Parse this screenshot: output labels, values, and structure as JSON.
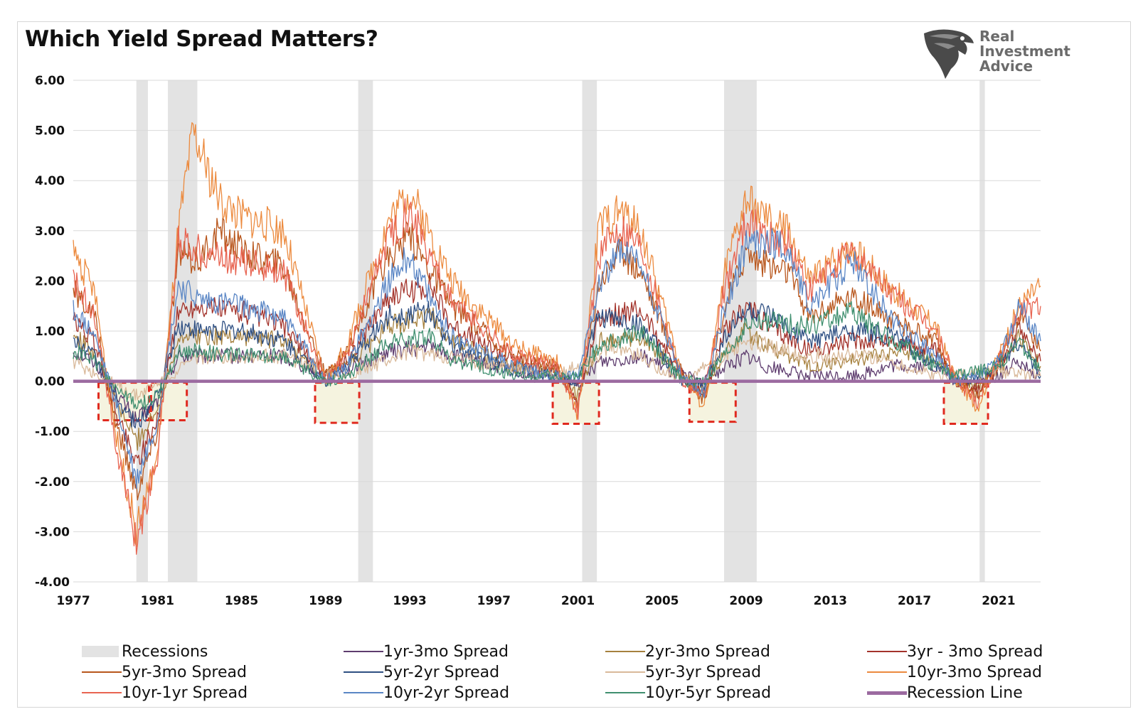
{
  "title": "Which Yield Spread Matters?",
  "logo": {
    "lines": [
      "Real",
      "Investment",
      "Advice"
    ],
    "icon": "eagle-head-icon"
  },
  "chart_data": {
    "type": "line",
    "title": "Which Yield Spread Matters?",
    "ylim": [
      -4,
      6
    ],
    "yticks": [
      "6.00",
      "5.00",
      "4.00",
      "3.00",
      "2.00",
      "1.00",
      "0.00",
      "-1.00",
      "-2.00",
      "-3.00",
      "-4.00"
    ],
    "xlim": [
      1977,
      2023
    ],
    "xticks": [
      "1977",
      "1981",
      "1985",
      "1989",
      "1993",
      "1997",
      "2001",
      "2005",
      "2009",
      "2013",
      "2017",
      "2021"
    ],
    "grid": "horizontal",
    "legend_position": "bottom",
    "recessions": [
      [
        1980.0,
        1980.55
      ],
      [
        1981.5,
        1982.9
      ],
      [
        1990.55,
        1991.25
      ],
      [
        2001.2,
        2001.9
      ],
      [
        2007.95,
        2009.5
      ],
      [
        2020.1,
        2020.35
      ]
    ],
    "highlight_boxes": [
      [
        1978.2,
        1980.6,
        -0.75
      ],
      [
        1980.7,
        1982.4,
        -0.75
      ],
      [
        1988.5,
        1990.6,
        -0.8
      ],
      [
        1999.8,
        2002.0,
        -0.82
      ],
      [
        2006.3,
        2008.5,
        -0.78
      ],
      [
        2018.4,
        2020.5,
        -0.82
      ]
    ],
    "recession_line": 0.0,
    "series": [
      {
        "name": "1yr-3mo Spread",
        "color": "#5e3c6e",
        "x": [
          1977,
          1978,
          1979,
          1980,
          1981,
          1982,
          1983,
          1985,
          1987,
          1989,
          1990,
          1992,
          1994,
          1995,
          1998,
          2000,
          2001,
          2002,
          2004,
          2006,
          2007,
          2008,
          2009,
          2010,
          2012,
          2014,
          2016,
          2018,
          2019,
          2020,
          2021,
          2022,
          2023
        ],
        "y": [
          0.6,
          0.4,
          -0.2,
          -0.8,
          -0.4,
          0.5,
          0.5,
          0.5,
          0.5,
          0.1,
          0.2,
          0.6,
          0.7,
          0.5,
          0.2,
          0.1,
          -0.1,
          0.4,
          0.5,
          0.1,
          0.0,
          0.3,
          0.5,
          0.3,
          0.1,
          0.1,
          0.3,
          0.3,
          0.0,
          0.0,
          0.1,
          0.4,
          0.1
        ]
      },
      {
        "name": "2yr-3mo Spread",
        "color": "#a6813e",
        "x": [
          1977,
          1978,
          1979,
          1980,
          1981,
          1982,
          1983,
          1985,
          1987,
          1989,
          1990,
          1992,
          1994,
          1995,
          1998,
          2000,
          2001,
          2002,
          2004,
          2006,
          2007,
          2008,
          2009,
          2010,
          2012,
          2014,
          2016,
          2018,
          2019,
          2020,
          2021,
          2022,
          2023
        ],
        "y": [
          0.9,
          0.6,
          -0.4,
          -1.2,
          -0.6,
          0.9,
          0.9,
          0.9,
          0.8,
          0.1,
          0.3,
          1.1,
          1.3,
          0.8,
          0.3,
          0.2,
          -0.3,
          0.8,
          0.9,
          0.1,
          -0.2,
          0.6,
          1.0,
          0.7,
          0.3,
          0.4,
          0.6,
          0.5,
          0.0,
          -0.1,
          0.2,
          0.9,
          0.3
        ]
      },
      {
        "name": "3yr - 3mo Spread",
        "color": "#a3332b",
        "x": [
          1977,
          1978,
          1979,
          1980,
          1981,
          1982,
          1983,
          1985,
          1987,
          1989,
          1990,
          1992,
          1994,
          1995,
          1998,
          2000,
          2001,
          2002,
          2004,
          2006,
          2007,
          2008,
          2009,
          2010,
          2012,
          2014,
          2016,
          2018,
          2019,
          2020,
          2021,
          2022,
          2023
        ],
        "y": [
          1.2,
          0.8,
          -0.6,
          -1.6,
          -0.8,
          1.4,
          1.5,
          1.4,
          1.1,
          0.1,
          0.4,
          1.7,
          1.9,
          1.1,
          0.4,
          0.2,
          -0.4,
          1.3,
          1.4,
          0.1,
          -0.3,
          1.0,
          1.5,
          1.1,
          0.6,
          0.8,
          0.8,
          0.6,
          0.0,
          -0.2,
          0.3,
          1.1,
          0.4
        ]
      },
      {
        "name": "5yr-3mo Spread",
        "color": "#b8561c",
        "x": [
          1977,
          1978,
          1979,
          1980,
          1981,
          1982,
          1983,
          1984,
          1985,
          1987,
          1989,
          1990,
          1992,
          1993,
          1994,
          1995,
          1998,
          2000,
          2001,
          2002,
          2003,
          2004,
          2006,
          2007,
          2008,
          2009,
          2010,
          2011,
          2012,
          2014,
          2016,
          2018,
          2019,
          2020,
          2021,
          2022,
          2023
        ],
        "y": [
          1.8,
          1.3,
          -0.8,
          -2.2,
          -1.0,
          2.5,
          2.4,
          3.0,
          2.6,
          2.3,
          0.1,
          0.6,
          2.5,
          2.9,
          2.2,
          1.5,
          0.5,
          0.3,
          -0.5,
          2.0,
          2.6,
          2.2,
          0.1,
          -0.4,
          1.5,
          2.6,
          2.3,
          2.2,
          1.3,
          1.7,
          1.2,
          0.8,
          0.0,
          -0.3,
          0.4,
          1.4,
          0.6
        ]
      },
      {
        "name": "5yr-2yr Spread",
        "color": "#2e4f82",
        "x": [
          1977,
          1978,
          1979,
          1980,
          1981,
          1982,
          1983,
          1985,
          1987,
          1989,
          1990,
          1992,
          1994,
          1995,
          1998,
          2000,
          2001,
          2002,
          2004,
          2006,
          2007,
          2008,
          2009,
          2010,
          2012,
          2014,
          2016,
          2018,
          2019,
          2020,
          2021,
          2022,
          2023
        ],
        "y": [
          0.8,
          0.5,
          -0.3,
          -0.9,
          -0.3,
          1.1,
          1.0,
          1.0,
          0.8,
          0.0,
          0.3,
          1.3,
          1.4,
          0.7,
          0.2,
          0.1,
          0.0,
          1.3,
          1.1,
          0.0,
          -0.1,
          0.9,
          1.4,
          1.3,
          0.8,
          1.0,
          0.9,
          0.3,
          0.0,
          0.1,
          0.3,
          0.8,
          0.1
        ]
      },
      {
        "name": "5yr-3yr Spread",
        "color": "#d9b99a",
        "x": [
          1977,
          1980,
          1983,
          1987,
          1990,
          1993,
          1996,
          2000,
          2003,
          2006,
          2009,
          2012,
          2015,
          2018,
          2021,
          2023
        ],
        "y": [
          0.4,
          -0.3,
          0.5,
          0.5,
          0.1,
          0.6,
          0.4,
          0.1,
          0.7,
          0.0,
          0.8,
          0.5,
          0.5,
          0.1,
          0.2,
          0.1
        ]
      },
      {
        "name": "10yr-3mo Spread",
        "color": "#ec8a3e",
        "x": [
          1977,
          1978,
          1979,
          1980,
          1981,
          1982,
          1982.7,
          1984,
          1985,
          1987,
          1989,
          1990,
          1992,
          1993,
          1994,
          1995,
          1998,
          2000,
          2001,
          2002,
          2003,
          2004,
          2006,
          2007,
          2008,
          2009,
          2010,
          2011,
          2012,
          2014,
          2016,
          2018,
          2019,
          2020,
          2021,
          2022,
          2023
        ],
        "y": [
          2.6,
          1.8,
          -1.0,
          -3.0,
          -1.5,
          3.0,
          4.9,
          3.6,
          3.3,
          3.0,
          0.0,
          0.7,
          3.2,
          3.8,
          2.9,
          2.0,
          0.7,
          0.4,
          -0.7,
          3.1,
          3.4,
          3.0,
          0.1,
          -0.5,
          2.2,
          3.6,
          3.2,
          3.0,
          2.0,
          2.7,
          1.8,
          1.1,
          0.0,
          -0.5,
          0.5,
          1.5,
          1.9
        ]
      },
      {
        "name": "10yr-1yr Spread",
        "color": "#e86451",
        "x": [
          1977,
          1978,
          1979,
          1980,
          1981,
          1982,
          1983,
          1985,
          1987,
          1989,
          1990,
          1992,
          1993,
          1994,
          1995,
          1998,
          2000,
          2001,
          2002,
          2003,
          2004,
          2006,
          2007,
          2008,
          2009,
          2010,
          2011,
          2012,
          2014,
          2016,
          2018,
          2019,
          2020,
          2021,
          2022,
          2023
        ],
        "y": [
          2.0,
          1.4,
          -1.2,
          -3.2,
          -1.5,
          2.8,
          2.6,
          2.4,
          2.2,
          0.0,
          0.5,
          2.9,
          3.4,
          2.5,
          1.6,
          0.5,
          0.3,
          -0.6,
          2.5,
          3.1,
          2.7,
          0.0,
          -0.3,
          1.9,
          3.2,
          2.9,
          2.7,
          1.8,
          2.6,
          1.7,
          1.0,
          0.0,
          -0.4,
          0.4,
          1.4,
          1.5
        ]
      },
      {
        "name": "10yr-2yr Spread",
        "color": "#5a86c5",
        "x": [
          1977,
          1978,
          1979,
          1980,
          1981,
          1982,
          1983,
          1985,
          1987,
          1989,
          1990,
          1992,
          1993,
          1994,
          1995,
          1998,
          2000,
          2001,
          2002,
          2003,
          2004,
          2006,
          2007,
          2008,
          2009,
          2010,
          2011,
          2012,
          2014,
          2016,
          2018,
          2019,
          2020,
          2021,
          2022,
          2023
        ],
        "y": [
          1.4,
          0.9,
          -0.4,
          -2.0,
          -0.8,
          1.9,
          1.6,
          1.5,
          1.3,
          0.0,
          0.3,
          2.0,
          2.5,
          1.6,
          0.9,
          0.3,
          0.1,
          0.1,
          2.0,
          2.6,
          2.3,
          0.0,
          -0.2,
          1.5,
          2.7,
          2.8,
          2.6,
          1.5,
          2.4,
          1.2,
          0.5,
          0.0,
          0.1,
          0.4,
          1.5,
          0.8
        ]
      },
      {
        "name": "10yr-5yr Spread",
        "color": "#3f8f6f",
        "x": [
          1977,
          1978,
          1979,
          1980,
          1981,
          1982,
          1983,
          1985,
          1987,
          1989,
          1990,
          1992,
          1994,
          1995,
          1998,
          2000,
          2001,
          2002,
          2004,
          2006,
          2007,
          2008,
          2009,
          2010,
          2012,
          2014,
          2016,
          2018,
          2019,
          2020,
          2021,
          2022,
          2023
        ],
        "y": [
          0.6,
          0.4,
          -0.1,
          -0.5,
          -0.3,
          0.6,
          0.6,
          0.5,
          0.5,
          0.0,
          0.1,
          0.8,
          0.9,
          0.4,
          0.1,
          0.1,
          0.1,
          0.7,
          1.0,
          0.0,
          0.0,
          0.5,
          1.1,
          1.2,
          1.1,
          1.4,
          0.8,
          0.3,
          0.1,
          0.2,
          0.3,
          0.8,
          0.2
        ]
      }
    ]
  },
  "legend": [
    {
      "label": "Recessions",
      "kind": "box",
      "color": "#e3e3e3"
    },
    {
      "label": "1yr-3mo Spread",
      "kind": "line",
      "color": "#5e3c6e"
    },
    {
      "label": "2yr-3mo Spread",
      "kind": "line",
      "color": "#a6813e"
    },
    {
      "label": "3yr - 3mo Spread",
      "kind": "line",
      "color": "#a3332b"
    },
    {
      "label": "5yr-3mo Spread",
      "kind": "line",
      "color": "#b8561c"
    },
    {
      "label": "5yr-2yr Spread",
      "kind": "line",
      "color": "#2e4f82"
    },
    {
      "label": "5yr-3yr Spread",
      "kind": "line",
      "color": "#d9b99a"
    },
    {
      "label": "10yr-3mo Spread",
      "kind": "line",
      "color": "#ec8a3e"
    },
    {
      "label": "10yr-1yr Spread",
      "kind": "line",
      "color": "#e86451"
    },
    {
      "label": "10yr-2yr Spread",
      "kind": "line",
      "color": "#5a86c5"
    },
    {
      "label": "10yr-5yr Spread",
      "kind": "line",
      "color": "#3f8f6f"
    },
    {
      "label": "Recession Line",
      "kind": "thick",
      "color": "#9b6aa0"
    }
  ]
}
